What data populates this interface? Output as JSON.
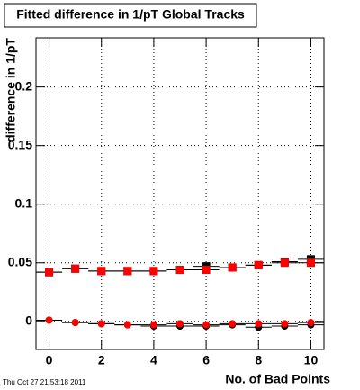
{
  "chart_data": {
    "type": "scatter",
    "title": "Fitted difference in 1/pT  Global Tracks",
    "x_label": "No. of Bad Points",
    "y_label": "difference in 1/pT",
    "timestamp": "Thu Oct 27 21:53:18 2011",
    "x": [
      0,
      1,
      2,
      3,
      4,
      5,
      6,
      7,
      8,
      9,
      10
    ],
    "xerr": 0.5,
    "series": [
      {
        "color": "#000000",
        "marker": "square",
        "values": [
          0.042,
          0.045,
          0.043,
          0.043,
          0.043,
          0.044,
          0.047,
          0.046,
          0.048,
          0.051,
          0.053
        ]
      },
      {
        "color": "#ff0000",
        "marker": "square",
        "values": [
          0.042,
          0.045,
          0.043,
          0.043,
          0.043,
          0.044,
          0.044,
          0.046,
          0.048,
          0.05,
          0.05
        ]
      },
      {
        "color": "#000000",
        "marker": "circle",
        "values": [
          0.001,
          -0.001,
          -0.002,
          -0.003,
          -0.004,
          -0.004,
          -0.004,
          -0.003,
          -0.005,
          -0.004,
          -0.003
        ]
      },
      {
        "color": "#ff0000",
        "marker": "circle",
        "values": [
          0.001,
          -0.001,
          -0.002,
          -0.003,
          -0.003,
          -0.002,
          -0.003,
          -0.002,
          -0.002,
          -0.002,
          -0.001
        ]
      }
    ],
    "xlim": [
      -0.5,
      10.5
    ],
    "xticks": [
      0,
      2,
      4,
      6,
      8,
      10
    ],
    "ylim": [
      -0.024,
      0.242
    ],
    "yticks": [
      0,
      0.05,
      0.1,
      0.15,
      0.2
    ],
    "grid": true
  }
}
